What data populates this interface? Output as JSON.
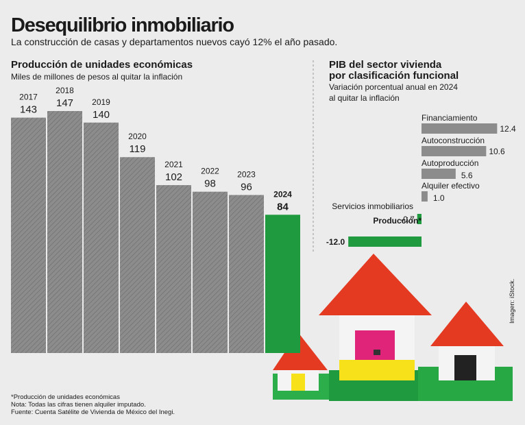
{
  "header": {
    "title": "Desequilibrio inmobiliario",
    "subtitle": "La construcción de casas y departamentos nuevos cayó 12% el año pasado."
  },
  "chart_data": [
    {
      "type": "bar",
      "title": "Producción de unidades económicas",
      "subtitle": "Miles de millones de pesos al quitar la inflación",
      "categories": [
        "2017",
        "2018",
        "2019",
        "2020",
        "2021",
        "2022",
        "2023",
        "2024"
      ],
      "values": [
        143,
        147,
        140,
        119,
        102,
        98,
        96,
        84
      ],
      "colors": [
        "#8c8c8c",
        "#8c8c8c",
        "#8c8c8c",
        "#8c8c8c",
        "#8c8c8c",
        "#8c8c8c",
        "#8c8c8c",
        "#1f9a3f"
      ]
    },
    {
      "type": "hbar",
      "title": [
        "PIB del sector vivienda",
        "por clasificación funcional"
      ],
      "subtitle": [
        "Variación porcentual anual en 2024",
        "al quitar la inflación"
      ],
      "categories": [
        "Financiamiento",
        "Autoconstrucción",
        "Autoproducción",
        "Alquiler efectivo",
        "Servicios inmobiliarios",
        "Producción*"
      ],
      "values": [
        12.4,
        10.6,
        5.6,
        1.0,
        -0.7,
        -12.0
      ],
      "value_labels": [
        "12.4",
        "10.6",
        "5.6",
        "1.0",
        "-0.7",
        "-12.0"
      ],
      "colors": [
        "#8c8c8c",
        "#8c8c8c",
        "#8c8c8c",
        "#8c8c8c",
        "#1f9a3f",
        "#1f9a3f"
      ]
    }
  ],
  "notes": [
    "*Producción de unidades económicas",
    "Nota: Todas las cifras tienen alquiler imputado.",
    "Fuente: Cuenta Satélite de Vivienda de México del Inegi."
  ],
  "credit": "Imagen: iStock."
}
